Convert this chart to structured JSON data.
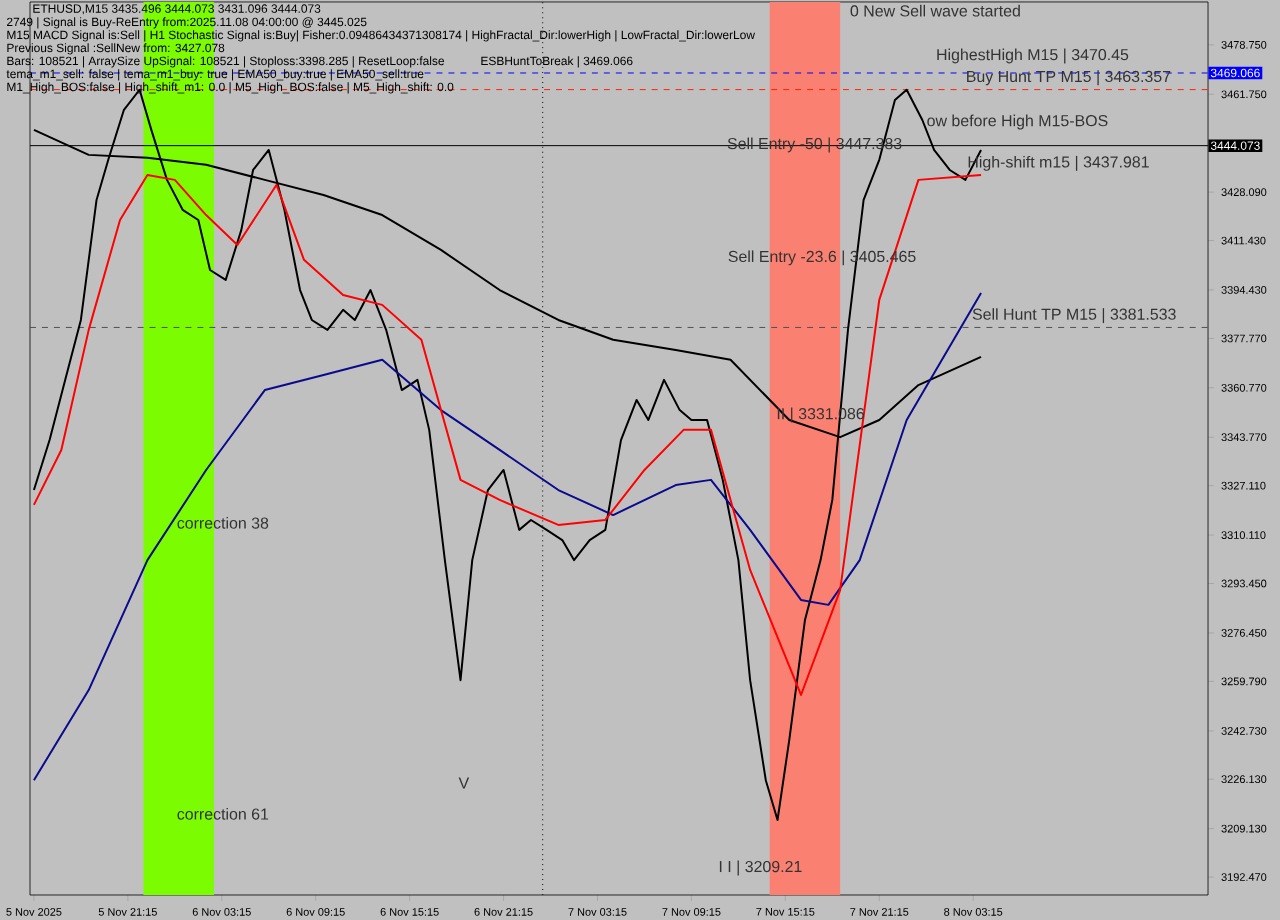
{
  "chart_data": {
    "type": "line",
    "title": "ETHUSD,M15  3435.496 3444.073 3431.096 3444.073",
    "xlim": [
      "2025-11-05T15:00",
      "2025-11-08T18:15"
    ],
    "ylim": [
      3186.3,
      3493.5
    ],
    "xticks": [
      {
        "value": "2025-11-05T15:15",
        "label": "5 Nov 2025"
      },
      {
        "value": "2025-11-05T21:15",
        "label": "5 Nov 21:15"
      },
      {
        "value": "2025-11-06T03:15",
        "label": "6 Nov 03:15"
      },
      {
        "value": "2025-11-06T09:15",
        "label": "6 Nov 09:15"
      },
      {
        "value": "2025-11-06T15:15",
        "label": "6 Nov 15:15"
      },
      {
        "value": "2025-11-06T21:15",
        "label": "6 Nov 21:15"
      },
      {
        "value": "2025-11-07T03:15",
        "label": "7 Nov 03:15"
      },
      {
        "value": "2025-11-07T09:15",
        "label": "7 Nov 09:15"
      },
      {
        "value": "2025-11-07T15:15",
        "label": "7 Nov 15:15"
      },
      {
        "value": "2025-11-07T21:15",
        "label": "7 Nov 21:15"
      },
      {
        "value": "2025-11-08T03:15",
        "label": "8 Nov 03:15"
      }
    ],
    "yticks": [
      {
        "value": 3478.75,
        "label": "3478.750"
      },
      {
        "value": 3461.75,
        "label": "3461.750"
      },
      {
        "value": 3428.09,
        "label": "3428.090"
      },
      {
        "value": 3411.43,
        "label": "3411.430"
      },
      {
        "value": 3394.43,
        "label": "3394.430"
      },
      {
        "value": 3377.77,
        "label": "3377.770"
      },
      {
        "value": 3360.77,
        "label": "3360.770"
      },
      {
        "value": 3343.77,
        "label": "3343.770"
      },
      {
        "value": 3327.11,
        "label": "3327.110"
      },
      {
        "value": 3310.11,
        "label": "3310.110"
      },
      {
        "value": 3293.45,
        "label": "3293.450"
      },
      {
        "value": 3276.45,
        "label": "3276.450"
      },
      {
        "value": 3259.79,
        "label": "3259.790"
      },
      {
        "value": 3242.73,
        "label": "3242.730"
      },
      {
        "value": 3226.13,
        "label": "3226.130"
      },
      {
        "value": 3209.13,
        "label": "3209.130"
      },
      {
        "value": 3192.47,
        "label": "3192.470"
      }
    ],
    "series": [
      {
        "color": "#000000",
        "x": [
          "2025-11-05T15:15",
          "2025-11-05T16:15",
          "2025-11-05T17:15",
          "2025-11-05T18:15",
          "2025-11-05T19:15",
          "2025-11-05T20:00",
          "2025-11-05T21:00",
          "2025-11-05T22:00",
          "2025-11-05T22:45",
          "2025-11-05T23:45",
          "2025-11-06T00:45",
          "2025-11-06T01:45",
          "2025-11-06T02:30",
          "2025-11-06T03:30",
          "2025-11-06T04:30",
          "2025-11-06T05:15",
          "2025-11-06T06:15",
          "2025-11-06T07:15",
          "2025-11-06T08:15",
          "2025-11-06T09:00",
          "2025-11-06T10:00",
          "2025-11-06T11:00",
          "2025-11-06T11:45",
          "2025-11-06T12:45",
          "2025-11-06T13:45",
          "2025-11-06T14:45",
          "2025-11-06T15:45",
          "2025-11-06T16:30",
          "2025-11-06T17:30",
          "2025-11-06T18:30",
          "2025-11-06T19:15",
          "2025-11-06T20:15",
          "2025-11-06T21:15",
          "2025-11-06T22:15",
          "2025-11-06T23:00",
          "2025-11-07T00:00",
          "2025-11-07T01:00",
          "2025-11-07T01:45",
          "2025-11-07T02:45",
          "2025-11-07T03:45",
          "2025-11-07T04:45",
          "2025-11-07T05:45",
          "2025-11-07T06:30",
          "2025-11-07T07:30",
          "2025-11-07T08:30",
          "2025-11-07T09:15",
          "2025-11-07T10:15",
          "2025-11-07T11:15",
          "2025-11-07T12:15",
          "2025-11-07T13:00",
          "2025-11-07T14:00",
          "2025-11-07T14:45",
          "2025-11-07T15:30",
          "2025-11-07T16:30",
          "2025-11-07T17:30",
          "2025-11-07T18:15",
          "2025-11-07T19:15",
          "2025-11-07T20:15",
          "2025-11-07T21:15",
          "2025-11-07T22:15",
          "2025-11-07T23:00",
          "2025-11-08T00:00",
          "2025-11-08T00:45",
          "2025-11-08T01:45",
          "2025-11-08T02:45",
          "2025-11-08T03:45"
        ],
        "values": [
          3325.6,
          3342.8,
          3363.5,
          3384.1,
          3425.4,
          3439.2,
          3456.4,
          3463.3,
          3449.5,
          3432.3,
          3422.0,
          3418.5,
          3401.3,
          3397.9,
          3415.1,
          3435.7,
          3442.6,
          3422.0,
          3394.4,
          3384.1,
          3380.7,
          3387.6,
          3384.1,
          3394.4,
          3380.7,
          3360.0,
          3363.5,
          3346.3,
          3301.5,
          3260.2,
          3301.5,
          3325.6,
          3332.5,
          3311.9,
          3315.3,
          3311.9,
          3308.4,
          3301.5,
          3308.4,
          3311.9,
          3342.8,
          3356.6,
          3349.7,
          3363.5,
          3353.1,
          3349.7,
          3349.7,
          3329.1,
          3301.5,
          3260.2,
          3225.8,
          3212.1,
          3239.6,
          3280.8,
          3301.5,
          3322.2,
          3380.7,
          3425.4,
          3439.2,
          3459.8,
          3463.3,
          3452.9,
          3442.6,
          3435.7,
          3432.3,
          3442.6
        ]
      },
      {
        "color": "#000000",
        "x": [
          "2025-11-05T15:15",
          "2025-11-05T18:45",
          "2025-11-05T22:30",
          "2025-11-06T02:15",
          "2025-11-06T06:00",
          "2025-11-06T09:45",
          "2025-11-06T13:30",
          "2025-11-06T17:15",
          "2025-11-06T21:00",
          "2025-11-07T00:45",
          "2025-11-07T04:15",
          "2025-11-07T08:15",
          "2025-11-07T11:45",
          "2025-11-07T15:30",
          "2025-11-07T18:45",
          "2025-11-07T21:15",
          "2025-11-07T23:45",
          "2025-11-08T03:45"
        ],
        "values": [
          3449.5,
          3440.9,
          3439.9,
          3437.5,
          3432.3,
          3427.1,
          3420.2,
          3408.2,
          3394.4,
          3384.1,
          3377.3,
          3373.8,
          3370.4,
          3349.7,
          3343.8,
          3349.7,
          3361.7,
          3371.4
        ]
      },
      {
        "color": "#0a0a8c",
        "x": [
          "2025-11-05T15:15",
          "2025-11-05T18:45",
          "2025-11-05T22:30",
          "2025-11-06T02:15",
          "2025-11-06T06:00",
          "2025-11-06T09:45",
          "2025-11-06T13:30",
          "2025-11-06T17:15",
          "2025-11-06T21:00",
          "2025-11-07T00:45",
          "2025-11-07T04:15",
          "2025-11-07T08:15",
          "2025-11-07T10:30",
          "2025-11-07T13:00",
          "2025-11-07T16:15",
          "2025-11-07T18:00",
          "2025-11-07T20:00",
          "2025-11-07T23:00",
          "2025-11-08T03:45"
        ],
        "values": [
          3225.8,
          3256.8,
          3301.5,
          3332.5,
          3360.0,
          3365.2,
          3370.4,
          3353.1,
          3339.4,
          3325.6,
          3317.0,
          3327.3,
          3329.1,
          3311.9,
          3287.8,
          3286.1,
          3301.5,
          3349.7,
          3393.4
        ]
      },
      {
        "color": "#ff0000",
        "x": [
          "2025-11-05T15:15",
          "2025-11-05T17:00",
          "2025-11-05T18:45",
          "2025-11-05T20:45",
          "2025-11-05T22:30",
          "2025-11-06T00:15",
          "2025-11-06T02:15",
          "2025-11-06T04:15",
          "2025-11-06T06:45",
          "2025-11-06T08:30",
          "2025-11-06T11:00",
          "2025-11-06T13:30",
          "2025-11-06T16:00",
          "2025-11-06T18:30",
          "2025-11-06T21:00",
          "2025-11-07T00:45",
          "2025-11-07T03:45",
          "2025-11-07T06:15",
          "2025-11-07T08:45",
          "2025-11-07T10:30",
          "2025-11-07T13:00",
          "2025-11-07T16:15",
          "2025-11-07T18:45",
          "2025-11-07T21:15",
          "2025-11-07T23:45",
          "2025-11-08T03:45"
        ],
        "values": [
          3320.5,
          3339.4,
          3380.7,
          3418.5,
          3434.0,
          3432.3,
          3420.2,
          3409.9,
          3430.6,
          3404.8,
          3392.7,
          3389.3,
          3377.3,
          3329.1,
          3322.2,
          3313.6,
          3315.3,
          3332.5,
          3346.3,
          3346.3,
          3298.1,
          3255.1,
          3291.2,
          3391.0,
          3432.3,
          3434.0
        ]
      }
    ],
    "bands": [
      {
        "axis": "x",
        "from": "2025-11-05T22:15",
        "to": "2025-11-06T02:45",
        "color": "#7cfc00"
      },
      {
        "axis": "x",
        "from": "2025-11-07T14:15",
        "to": "2025-11-07T18:45",
        "color": "#fa8072"
      }
    ],
    "ref_lines": [
      {
        "axis": "y",
        "value": 3469.066,
        "label": "3469.066",
        "color": "#0000ff",
        "line_style": "dashed"
      },
      {
        "axis": "y",
        "value": 3444.073,
        "label": "3444.073",
        "color": "#000000",
        "line_style": "solid"
      },
      {
        "axis": "y",
        "value": 3463.357,
        "color": "#ff2000",
        "line_style": "dashed"
      },
      {
        "axis": "y",
        "value": 3381.533,
        "color": "#505050",
        "line_style": "dashed"
      },
      {
        "axis": "x",
        "value": "2025-11-06T23:45",
        "color": "#000000",
        "line_style": "dotted"
      }
    ],
    "annotations": [
      "2749 | Signal is Buy-ReEntry from:2025.11.08 04:00:00 @ 3445.025",
      "M15 MACD Signal is:Sell | H1 Stochastic Signal is:Buy| Fisher:0.09486434371308174 | HighFractal_Dir:lowerHigh | LowFractal_Dir:lowerLow",
      "Previous Signal :SellNew from: 3427.078",
      "Bars: 108521 | ArraySize UpSignal: 108521 | Stoploss:3398.285 | ResetLoop:false",
      "tema_m1_sell: false | tema_m1_buy: true | EMA50_buy:true | EMA50_sell:true",
      "M1_High_BOS:false | High_shift_m1: 0.0 | M5_High_BOS:false | M5_High_shift: 0.0",
      "ESBHuntToBreak | 3469.066",
      "0 New Sell wave started",
      "HighestHigh   M15 | 3470.45",
      {
        "text": "Buy Hunt TP M15 | 3463.357",
        "x": "2025-11-08T02:45",
        "y": 3467.4
      },
      {
        "text": "ow before High   M15-BOS",
        "x": "2025-11-08T00:15",
        "y": 3452.2
      },
      {
        "text": "Sell Entry -50 | 3447.383",
        "x": "2025-11-07T11:30",
        "y": 3444.3
      },
      "High-shift m15 | 3437.981",
      "Sell Entry -23.6 | 3405.465",
      "Sell Hunt TP M15 | 3381.533",
      "II | 3331.086",
      "correction 38",
      "correction 61",
      "V",
      "I I | 3209.21"
    ]
  }
}
